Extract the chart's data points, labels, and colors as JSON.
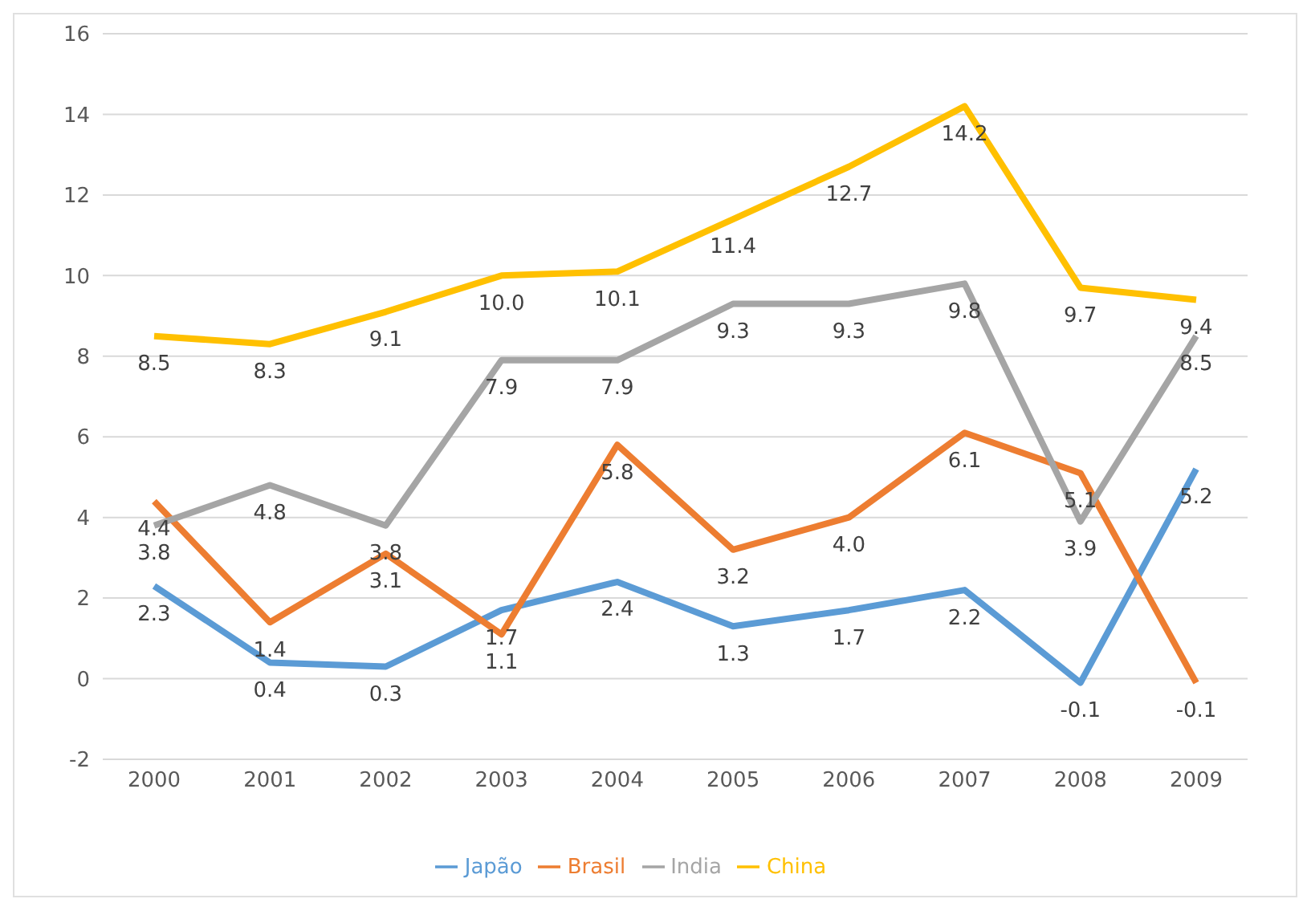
{
  "chart_data": {
    "type": "line",
    "categories": [
      "2000",
      "2001",
      "2002",
      "2003",
      "2004",
      "2005",
      "2006",
      "2007",
      "2008",
      "2009"
    ],
    "series": [
      {
        "name": "Japão",
        "color": "#5b9bd5",
        "values": [
          2.3,
          0.4,
          0.3,
          1.7,
          2.4,
          1.3,
          1.7,
          2.2,
          -0.1,
          5.2
        ],
        "value_labels": [
          "2.3",
          "0.4",
          "0.3",
          "1.7",
          "2.4",
          "1.3",
          "1.7",
          "2.2",
          "-0.1",
          "5.2"
        ]
      },
      {
        "name": "Brasil",
        "color": "#ed7d31",
        "values": [
          4.4,
          1.4,
          3.1,
          1.1,
          5.8,
          3.2,
          4.0,
          6.1,
          5.1,
          -0.1
        ],
        "value_labels": [
          "4.4",
          "1.4",
          "3.1",
          "1.1",
          "5.8",
          "3.2",
          "4.0",
          "6.1",
          "5.1",
          "-0.1"
        ]
      },
      {
        "name": "India",
        "color": "#a5a5a5",
        "values": [
          3.8,
          4.8,
          3.8,
          7.9,
          7.9,
          9.3,
          9.3,
          9.8,
          3.9,
          8.5
        ],
        "value_labels": [
          "3.8",
          "4.8",
          "3.8",
          "7.9",
          "7.9",
          "9.3",
          "9.3",
          "9.8",
          "3.9",
          "8.5"
        ]
      },
      {
        "name": "China",
        "color": "#ffc000",
        "values": [
          8.5,
          8.3,
          9.1,
          10.0,
          10.1,
          11.4,
          12.7,
          14.2,
          9.7,
          9.4
        ],
        "value_labels": [
          "8.5",
          "8.3",
          "9.1",
          "10.0",
          "10.1",
          "11.4",
          "12.7",
          "14.2",
          "9.7",
          "9.4"
        ]
      }
    ],
    "ylim": [
      -2,
      16
    ],
    "yticks": [
      -2,
      0,
      2,
      4,
      6,
      8,
      10,
      12,
      14,
      16
    ],
    "grid": "y",
    "legend": "bottom",
    "marker": "none",
    "line_style": "solid"
  }
}
